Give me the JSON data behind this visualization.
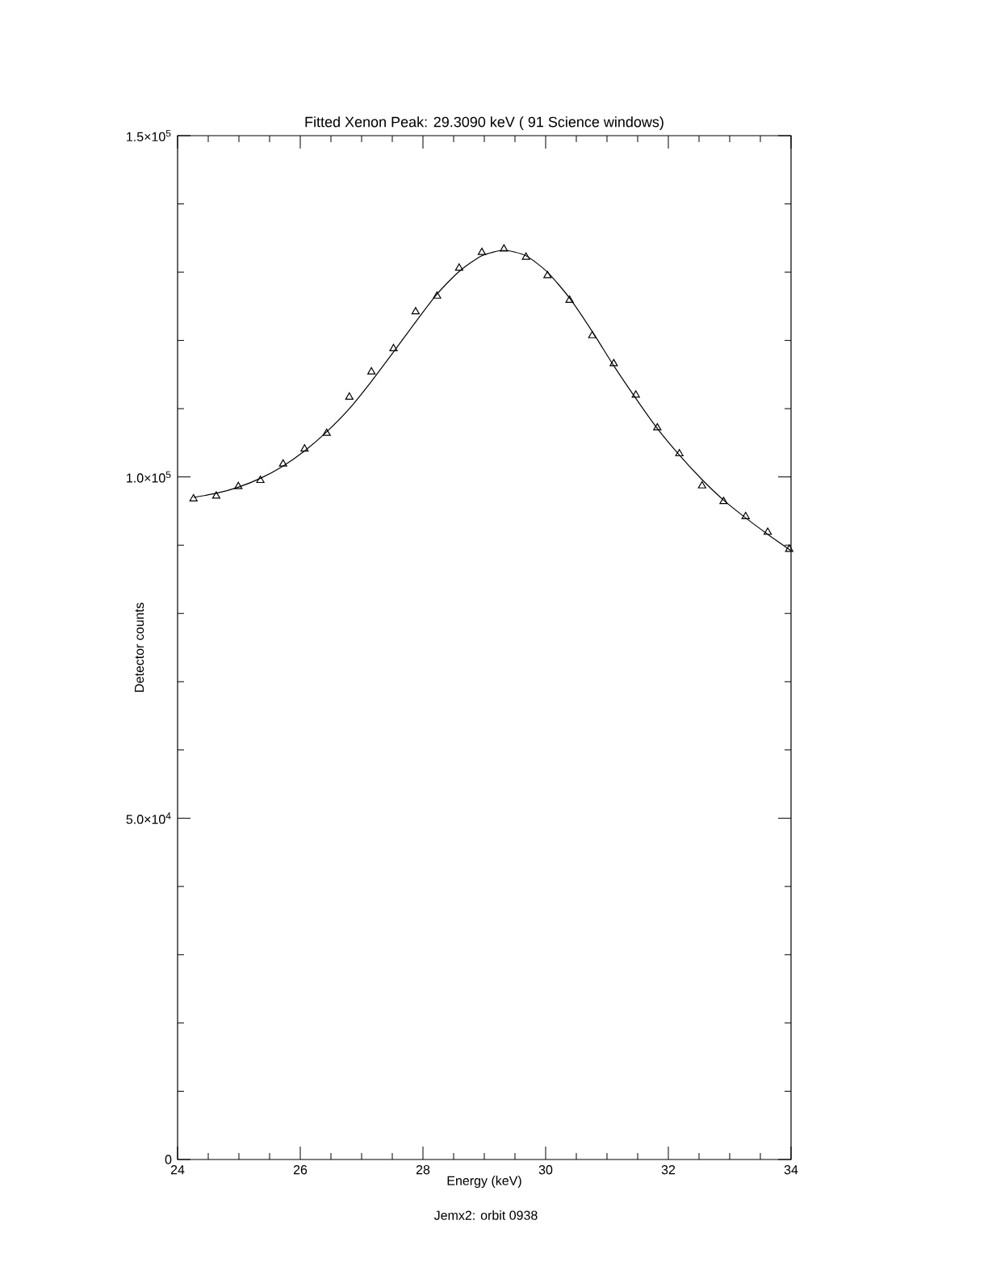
{
  "chart_data": {
    "type": "scatter",
    "title": "Fitted Xenon Peak: 29.3090 keV ( 91 Science windows)",
    "xlabel": "Energy (keV)",
    "ylabel": "Detector counts",
    "annotations": [
      "Jemx2: orbit 0938"
    ],
    "xlim": [
      24,
      34
    ],
    "xticks": [
      24,
      26,
      28,
      30,
      32,
      34
    ],
    "ylim": [
      0,
      150000
    ],
    "yticks": [
      0,
      {
        "value": 50000,
        "label": "5.0×10$^{4}$"
      },
      {
        "value": 100000,
        "label": "1.0×10$^{5}$"
      },
      {
        "value": 150000,
        "label": "1.5×10$^{5}$"
      }
    ],
    "series": [
      {
        "marker": "triangle",
        "color": "#000000",
        "x": [
          24.26,
          24.63,
          24.99,
          25.35,
          25.72,
          26.07,
          26.43,
          26.8,
          27.16,
          27.52,
          27.88,
          28.23,
          28.59,
          28.96,
          29.32,
          29.68,
          30.03,
          30.39,
          30.76,
          31.11,
          31.47,
          31.82,
          32.18,
          32.55,
          32.9,
          33.26,
          33.62,
          33.97
        ],
        "values": [
          96800,
          97200,
          98600,
          99500,
          101900,
          104100,
          106400,
          111700,
          115400,
          118800,
          124200,
          126500,
          130600,
          132900,
          133400,
          132200,
          129500,
          125900,
          120700,
          116600,
          112000,
          107200,
          103400,
          98700,
          96400,
          94200,
          91900,
          89400
        ]
      },
      {
        "type": "line",
        "marker": "none",
        "line_style": "solid",
        "color": "#000000",
        "x": [
          24.26,
          24.63,
          24.99,
          25.35,
          25.72,
          26.07,
          26.43,
          26.8,
          27.16,
          27.52,
          27.88,
          28.23,
          28.59,
          28.96,
          29.32,
          29.68,
          30.03,
          30.39,
          30.76,
          31.11,
          31.47,
          31.82,
          32.18,
          32.55,
          32.9,
          33.26,
          33.62,
          34.0
        ],
        "values": [
          97000,
          97600,
          98500,
          99800,
          101600,
          103800,
          106600,
          110000,
          114000,
          118300,
          122700,
          126800,
          130100,
          132400,
          133200,
          132400,
          130000,
          126200,
          121300,
          116300,
          111500,
          107100,
          103200,
          99600,
          96600,
          94000,
          91600,
          89200
        ]
      }
    ]
  }
}
